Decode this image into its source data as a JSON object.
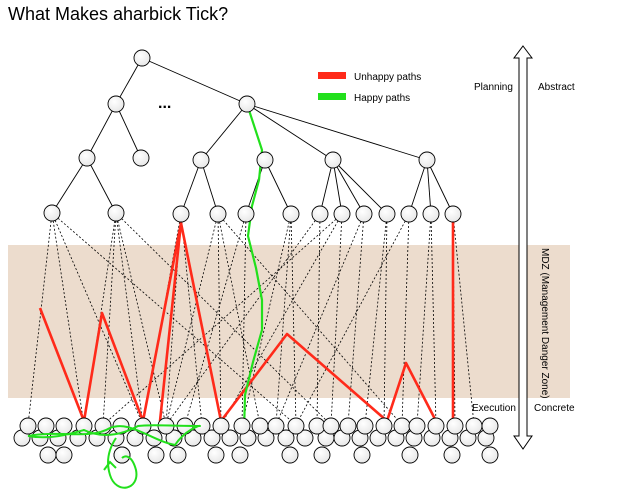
{
  "title": "What Makes aharbick Tick?",
  "ellipsis": "...",
  "legend": {
    "unhappy": {
      "label": "Unhappy paths",
      "color": "#ff2a1a"
    },
    "happy": {
      "label": "Happy paths",
      "color": "#22e01c"
    }
  },
  "axis": {
    "planning": "Planning",
    "abstract": "Abstract",
    "execution": "Execution",
    "concrete": "Concrete",
    "mdz": "MDZ (Management Danger Zone)"
  },
  "colors": {
    "mdz_band": "#ecdccd",
    "node_fill": "#ffffff",
    "node_stroke": "#000000",
    "edge": "#000000"
  }
}
